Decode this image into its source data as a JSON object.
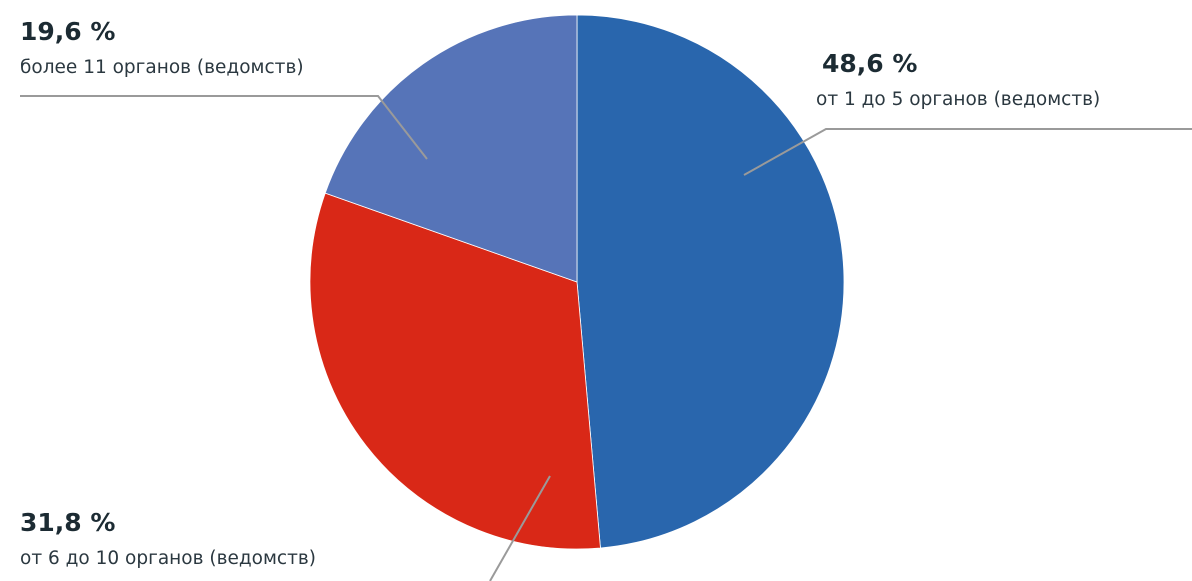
{
  "chart_data": {
    "type": "pie",
    "title": "",
    "start_angle_deg": 0,
    "direction": "clockwise",
    "slices": [
      {
        "label": "от 1 до 5 органов (ведомств)",
        "value": 48.6,
        "display": "48,6 %",
        "color": "#2966ad"
      },
      {
        "label": "от 6 до 10 органов (ведомств)",
        "value": 31.8,
        "display": "31,8 %",
        "color": "#d92817"
      },
      {
        "label": "более 11 органов (ведомств)",
        "value": 19.6,
        "display": "19,6 %",
        "color": "#5674b8"
      }
    ]
  }
}
